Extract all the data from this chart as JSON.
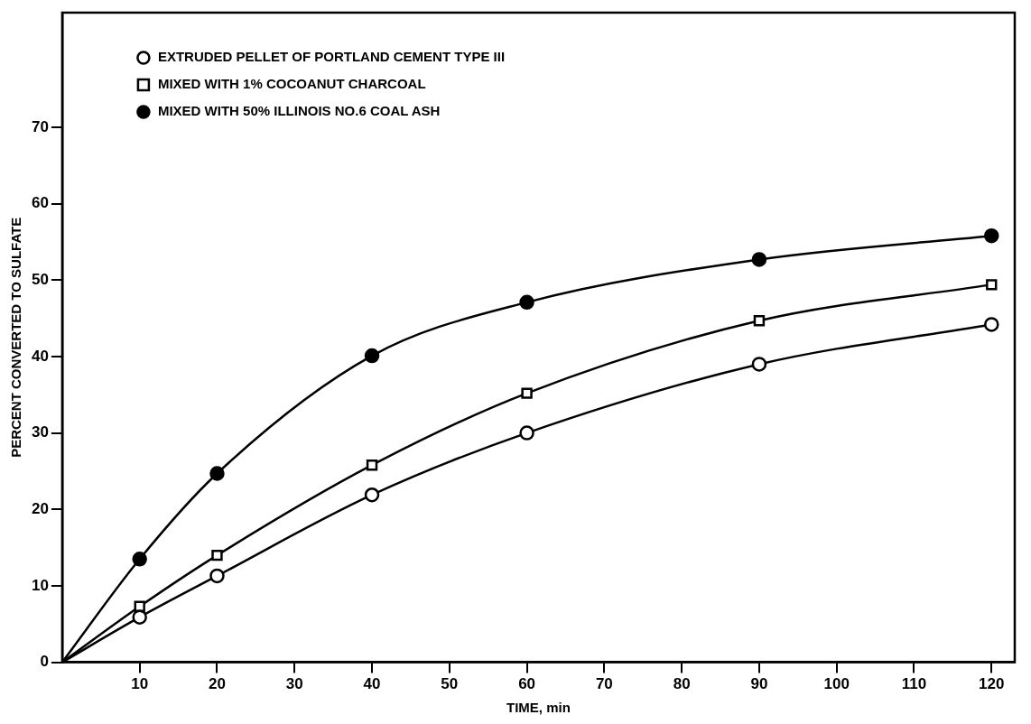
{
  "chart_data": {
    "type": "line",
    "xlabel": "TIME, min",
    "ylabel": "PERCENT CONVERTED TO SULFATE",
    "x": [
      0,
      10,
      20,
      40,
      60,
      90,
      120
    ],
    "series": [
      {
        "name": "EXTRUDED PELLET OF PORTLAND CEMENT TYPE III",
        "color": "#000000",
        "marker": "circle",
        "values": [
          0,
          5.9,
          11.3,
          21.9,
          30.0,
          39.0,
          44.2
        ]
      },
      {
        "name": "MIXED WITH 1% COCOANUT CHARCOAL",
        "color": "#000000",
        "marker": "square",
        "values": [
          0,
          7.3,
          14.0,
          25.8,
          35.2,
          44.7,
          49.4
        ]
      },
      {
        "name": "MIXED WITH 50% ILLINOIS NO.6 COAL ASH",
        "color": "#000000",
        "marker": "circle",
        "values": [
          0,
          13.5,
          24.7,
          40.1,
          47.1,
          52.7,
          55.8
        ]
      }
    ],
    "xlim": [
      0,
      123
    ],
    "xticks": [
      10,
      20,
      30,
      40,
      50,
      60,
      70,
      80,
      90,
      100,
      110,
      120
    ],
    "ylim": [
      0,
      85
    ],
    "yticks": [
      0,
      10,
      20,
      30,
      40,
      50,
      60,
      70
    ],
    "grid": false,
    "legend": "top left",
    "line_style": "solid"
  }
}
